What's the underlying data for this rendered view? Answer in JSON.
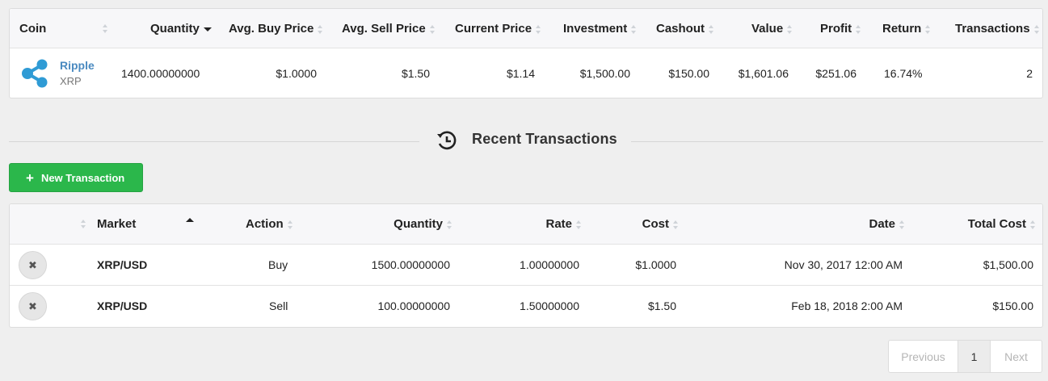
{
  "holdings": {
    "headers": {
      "coin": "Coin",
      "quantity": "Quantity",
      "avg_buy": "Avg. Buy Price",
      "avg_sell": "Avg. Sell Price",
      "current_price": "Current Price",
      "investment": "Investment",
      "cashout": "Cashout",
      "value": "Value",
      "profit": "Profit",
      "return": "Return",
      "transactions": "Transactions"
    },
    "row": {
      "coin_name": "Ripple",
      "coin_symbol": "XRP",
      "quantity": "1400.00000000",
      "avg_buy": "$1.0000",
      "avg_sell": "$1.50",
      "current_price": "$1.14",
      "investment": "$1,500.00",
      "cashout": "$150.00",
      "value": "$1,601.06",
      "profit": "$251.06",
      "return": "16.74%",
      "transactions": "2"
    },
    "coin_icon": "ripple-logo",
    "coin_color": "#2f9bd5"
  },
  "recent": {
    "title": "Recent Transactions",
    "icon": "history-icon"
  },
  "new_transaction": {
    "label": "New Transaction",
    "icon": "plus-icon",
    "color": "#2bb74b"
  },
  "transactions": {
    "headers": {
      "market": "Market",
      "action": "Action",
      "quantity": "Quantity",
      "rate": "Rate",
      "cost": "Cost",
      "date": "Date",
      "total_cost": "Total Cost"
    },
    "rows": [
      {
        "market": "XRP/USD",
        "action": "Buy",
        "quantity": "1500.00000000",
        "rate": "1.00000000",
        "cost": "$1.0000",
        "date": "Nov 30, 2017 12:00 AM",
        "total_cost": "$1,500.00",
        "delete_icon": "close-icon"
      },
      {
        "market": "XRP/USD",
        "action": "Sell",
        "quantity": "100.00000000",
        "rate": "1.50000000",
        "cost": "$1.50",
        "date": "Feb 18, 2018 2:00 AM",
        "total_cost": "$150.00",
        "delete_icon": "close-icon"
      }
    ]
  },
  "pagination": {
    "previous": "Previous",
    "current": "1",
    "next": "Next"
  }
}
